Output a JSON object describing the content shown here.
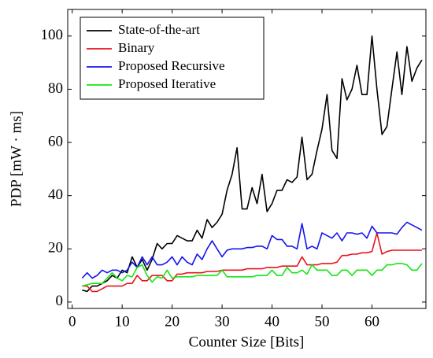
{
  "chart_data": {
    "type": "line",
    "x_label": "Counter Size [Bits]",
    "y_label": "PDP [mW · ms]",
    "x": [
      2,
      3,
      4,
      5,
      6,
      7,
      8,
      9,
      10,
      11,
      12,
      13,
      14,
      15,
      16,
      17,
      18,
      19,
      20,
      21,
      22,
      23,
      24,
      25,
      26,
      27,
      28,
      29,
      30,
      31,
      32,
      33,
      34,
      35,
      36,
      37,
      38,
      39,
      40,
      41,
      42,
      43,
      44,
      45,
      46,
      47,
      48,
      49,
      50,
      51,
      52,
      53,
      54,
      55,
      56,
      57,
      58,
      59,
      60,
      61,
      62,
      63,
      64,
      65,
      66,
      67,
      68,
      69,
      70
    ],
    "series": [
      {
        "name": "State-of-the-art",
        "color": "#000000",
        "values": [
          4.5,
          4,
          6,
          6,
          7,
          8,
          10,
          9,
          12,
          11,
          17,
          13,
          16,
          12,
          16,
          22,
          20,
          22,
          22,
          25,
          24,
          23,
          23,
          27,
          24,
          31,
          28,
          30,
          33,
          42,
          48,
          58,
          35,
          35,
          43,
          37,
          48,
          34,
          37,
          42,
          42,
          46,
          45,
          47,
          62,
          46,
          48,
          57,
          65,
          78,
          57,
          54,
          84,
          76,
          80,
          89,
          78,
          78,
          100,
          80,
          63,
          66,
          80,
          94,
          78,
          96,
          83,
          88,
          91
        ]
      },
      {
        "name": "Binary",
        "color": "#e8141c",
        "values": [
          6,
          6,
          4,
          4,
          5,
          6,
          6,
          6,
          6,
          7,
          7,
          10,
          8,
          8,
          10,
          10,
          10,
          8,
          8,
          10.5,
          10.5,
          11,
          11,
          11,
          11,
          11.5,
          11.5,
          11.5,
          12,
          12,
          12,
          12,
          12,
          12.5,
          12.5,
          12.5,
          12.5,
          13,
          13,
          13,
          13.5,
          13.5,
          13.5,
          13.5,
          17,
          14,
          14,
          14,
          14.5,
          14.5,
          14.5,
          15,
          17.5,
          17.5,
          18,
          18,
          18.5,
          18.5,
          19,
          26,
          18,
          19,
          19.5,
          19.5,
          19.5,
          19.5,
          19.5,
          19.5,
          19.5
        ]
      },
      {
        "name": "Proposed Recursive",
        "color": "#1414f0",
        "values": [
          9,
          11,
          9,
          10,
          12,
          11,
          12,
          12,
          11,
          12,
          15,
          13,
          17,
          14,
          17,
          14,
          14,
          15,
          17,
          14,
          17,
          15,
          14,
          18,
          16,
          20,
          23,
          20,
          17,
          19.5,
          20,
          20,
          20,
          20.5,
          20.5,
          21,
          21,
          20,
          25,
          23.5,
          23.5,
          21,
          21,
          20,
          29.5,
          20,
          21,
          20,
          26,
          25,
          24,
          26,
          23,
          26,
          26,
          25.5,
          26,
          24,
          28.5,
          26,
          26,
          26,
          26,
          25.5,
          28,
          30,
          29,
          28,
          27
        ]
      },
      {
        "name": "Proposed Iterative",
        "color": "#14e614",
        "values": [
          6,
          6.5,
          7,
          7,
          7,
          9,
          11,
          9,
          8,
          10,
          9.5,
          13,
          14,
          10,
          7.5,
          9.5,
          9,
          12,
          9,
          9.5,
          9.5,
          9.5,
          9.5,
          10,
          10,
          10,
          10,
          10,
          12,
          9.5,
          9.5,
          9.5,
          9.5,
          9.5,
          9.5,
          10,
          10,
          10,
          12,
          10,
          10,
          13,
          11,
          11,
          12,
          10.5,
          14,
          12,
          12,
          12,
          10,
          10,
          12,
          12,
          10,
          12,
          12,
          12,
          10,
          12,
          12,
          14,
          14,
          14.5,
          14.5,
          14,
          12,
          12,
          14.5
        ]
      }
    ],
    "xlim": [
      -0.9,
      70.8
    ],
    "xticks": [
      0,
      10,
      20,
      30,
      40,
      50,
      60
    ],
    "ylim": [
      -2.4,
      110
    ],
    "yticks": [
      0,
      20,
      40,
      60,
      80,
      100
    ],
    "legend": "upper left"
  }
}
